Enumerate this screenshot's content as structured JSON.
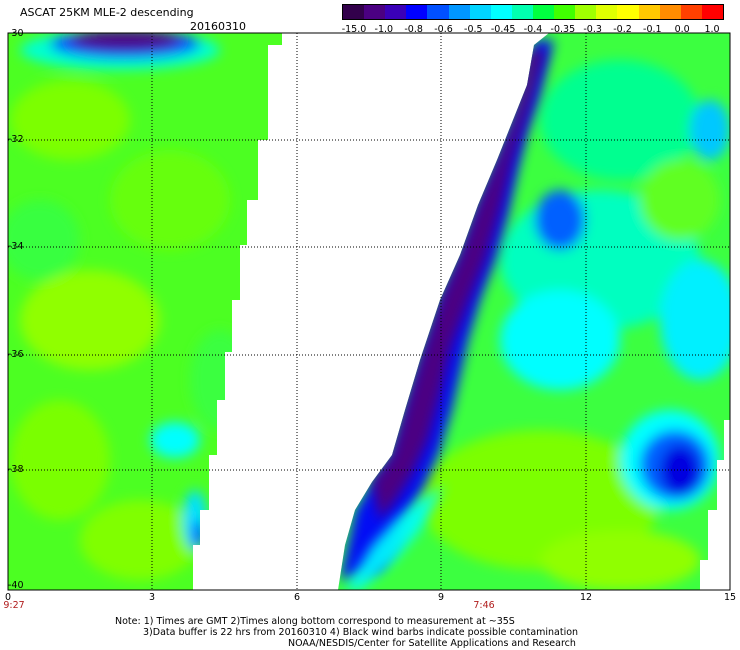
{
  "header": {
    "title": "ASCAT 25KM MLE-2 descending",
    "date": "20160310"
  },
  "colorbar": {
    "labels": [
      "-15.0",
      "-1.0",
      "-0.8",
      "-0.6",
      "-0.5",
      "-0.45",
      "-0.4",
      "-0.35",
      "-0.3",
      "-0.2",
      "-0.1",
      "0.0",
      "1.0"
    ],
    "colors": [
      "#32004b",
      "#4b0082",
      "#3a00b8",
      "#0000ff",
      "#0050ff",
      "#0096ff",
      "#00d4ff",
      "#00ffff",
      "#00ffb0",
      "#00ff40",
      "#40ff00",
      "#a0ff00",
      "#e0ff00",
      "#ffff00",
      "#ffc800",
      "#ff8c00",
      "#ff4000",
      "#ff0000"
    ]
  },
  "axes": {
    "y_labels": [
      "-30",
      "-32",
      "-34",
      "-36",
      "-38",
      "-40"
    ],
    "x_labels": [
      "0",
      "3",
      "6",
      "9",
      "12",
      "15"
    ]
  },
  "times": {
    "left": "9:27",
    "right": "7:46"
  },
  "notes": {
    "line1": "Note: 1) Times are GMT 2)Times along bottom correspond to measurement at ~35S",
    "line2": "3)Data buffer is 22 hrs from 20160310 4) Black wind barbs indicate possible contamination",
    "credit": "NOAA/NESDIS/Center for Satellite Applications and Research"
  },
  "map": {
    "swaths": [
      {
        "name": "west-swath",
        "dominant": "green / yellow-green",
        "features": [
          "purple-blue band along top edge",
          "cyan-blue patch near -38 lat, 3-4 lon"
        ]
      },
      {
        "name": "east-swath",
        "dominant": "green / cyan",
        "features": [
          "dark purple-blue edge along western boundary",
          "blue patch near -38 lat, 14 lon"
        ]
      }
    ]
  }
}
